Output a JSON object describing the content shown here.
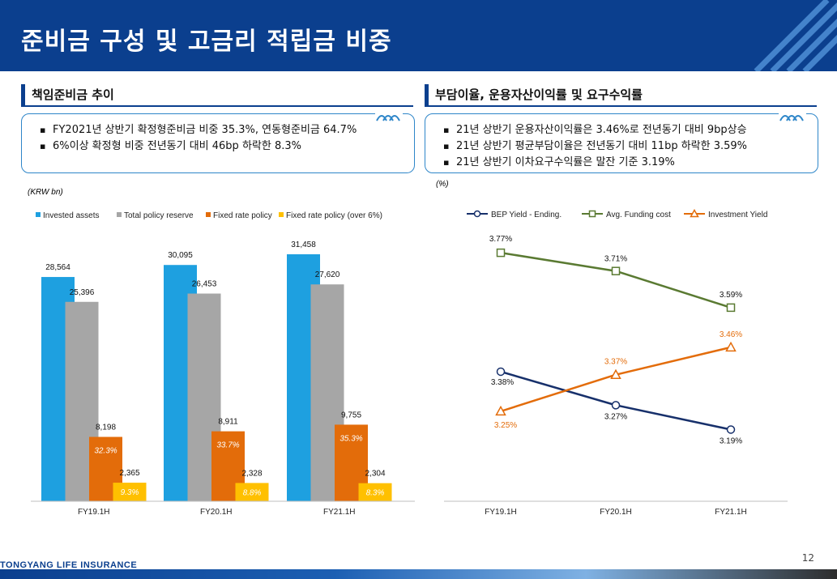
{
  "page": {
    "title": "준비금 구성 및 고금리 적립금 비중",
    "company": "TONGYANG LIFE INSURANCE",
    "page_number": "12"
  },
  "left": {
    "heading": "책임준비금 추이",
    "bullets": [
      "FY2021년 상반기 확정형준비금 비중 35.3%, 연동형준비금 64.7%",
      "6%이상 확정형 비중 전년동기 대비 46bp 하락한 8.3%"
    ],
    "unit": "(KRW bn)"
  },
  "right": {
    "heading": "부담이율, 운용자산이익률 및 요구수익률",
    "bullets": [
      "21년 상반기 운용자산이익률은 3.46%로 전년동기 대비 9bp상승",
      "21년 상반기 평균부담이율은 전년동기 대비 11bp 하락한 3.59%",
      "21년 상반기 이차요구수익률은 말잔 기준 3.19%"
    ],
    "unit": "(%)"
  },
  "colors": {
    "title_bar": "#0b3f8e",
    "invested_assets": "#1ea0e0",
    "total_policy_reserve": "#a6a6a6",
    "fixed_rate_policy": "#e36c0a",
    "fixed_rate_over6": "#ffc000",
    "bep_yield": "#17306b",
    "funding_cost": "#5a7a32",
    "investment_yield": "#e36c0a"
  },
  "chart_data": [
    {
      "type": "bar",
      "categories": [
        "FY19.1H",
        "FY20.1H",
        "FY21.1H"
      ],
      "series": [
        {
          "name": "Invested assets",
          "values": [
            28564,
            30095,
            31458
          ],
          "labels": [
            "28,564",
            "30,095",
            "31,458"
          ]
        },
        {
          "name": "Total policy reserve",
          "values": [
            25396,
            26453,
            27620
          ],
          "labels": [
            "25,396",
            "26,453",
            "27,620"
          ]
        },
        {
          "name": "Fixed rate policy",
          "values": [
            8198,
            8911,
            9755
          ],
          "labels": [
            "8,198",
            "8,911",
            "9,755"
          ],
          "shares": [
            "32.3%",
            "33.7%",
            "35.3%"
          ]
        },
        {
          "name": "Fixed rate policy (over 6%)",
          "values": [
            2365,
            2328,
            2304
          ],
          "labels": [
            "2,365",
            "2,328",
            "2,304"
          ],
          "shares": [
            "9.3%",
            "8.8%",
            "8.3%"
          ]
        }
      ],
      "ylim": [
        0,
        31458
      ],
      "legend": "top",
      "grid": false
    },
    {
      "type": "line",
      "categories": [
        "FY19.1H",
        "FY20.1H",
        "FY21.1H"
      ],
      "series": [
        {
          "name": "BEP Yield - Ending.",
          "values": [
            3.38,
            3.27,
            3.19
          ],
          "labels": [
            "3.38%",
            "3.27%",
            "3.19%"
          ],
          "marker": "circle"
        },
        {
          "name": "Avg. Funding cost",
          "values": [
            3.77,
            3.71,
            3.59
          ],
          "labels": [
            "3.77%",
            "3.71%",
            "3.59%"
          ],
          "marker": "square"
        },
        {
          "name": "Investment Yield",
          "values": [
            3.25,
            3.37,
            3.46
          ],
          "labels": [
            "3.25%",
            "3.37%",
            "3.46%"
          ],
          "marker": "triangle"
        }
      ],
      "ylim": [
        3.0,
        3.85
      ],
      "legend": "top",
      "grid": false
    }
  ]
}
